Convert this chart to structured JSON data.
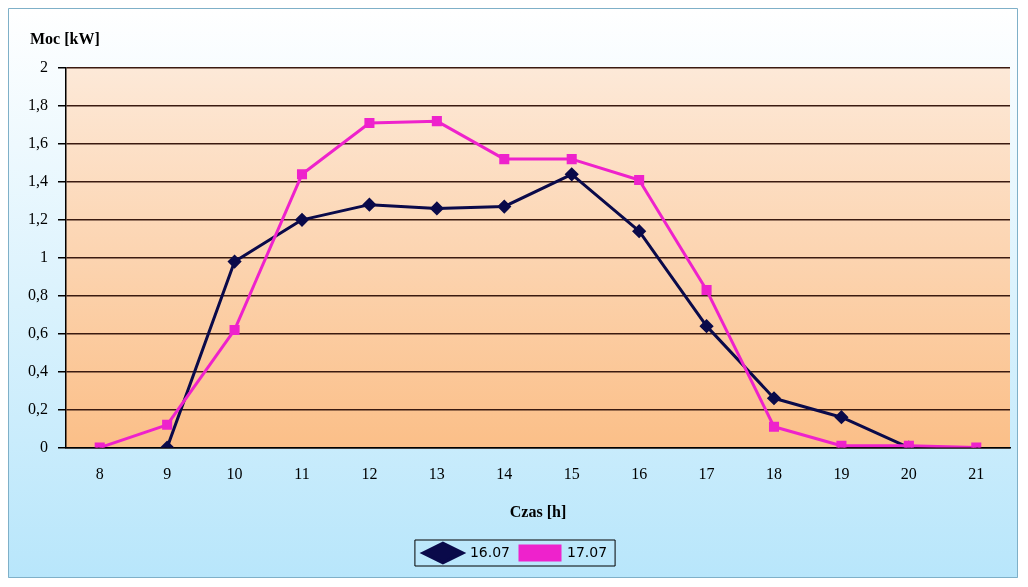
{
  "chart_data": {
    "type": "line",
    "xlabel": "Czas [h]",
    "ylabel": "Moc [kW]",
    "categories": [
      "8",
      "9",
      "10",
      "11",
      "12",
      "13",
      "14",
      "15",
      "16",
      "17",
      "18",
      "19",
      "20",
      "21"
    ],
    "series": [
      {
        "name": "16.07",
        "color": "#0a0a4a",
        "marker": "diamond",
        "values": [
          null,
          0,
          0.98,
          1.2,
          1.28,
          1.26,
          1.27,
          1.44,
          1.14,
          0.64,
          0.26,
          0.16,
          0,
          null
        ]
      },
      {
        "name": "17.07",
        "color": "#ee22cc",
        "marker": "square",
        "values": [
          0,
          0.12,
          0.62,
          1.44,
          1.71,
          1.72,
          1.52,
          1.52,
          1.41,
          0.83,
          0.11,
          0.01,
          0.01,
          0
        ]
      }
    ],
    "ylim": [
      0,
      2
    ],
    "yticks": [
      0,
      {
        "value": 0.2,
        "label": "0,2"
      },
      {
        "value": 0.4,
        "label": "0,4"
      },
      {
        "value": 0.6,
        "label": "0,6"
      },
      {
        "value": 0.8,
        "label": "0,8"
      },
      1,
      {
        "value": 1.2,
        "label": "1,2"
      },
      {
        "value": 1.4,
        "label": "1,4"
      },
      {
        "value": 1.6,
        "label": "1,6"
      },
      {
        "value": 1.8,
        "label": "1,8"
      },
      2
    ],
    "grid": "y",
    "legend": "bottom",
    "line_style": "solid"
  }
}
